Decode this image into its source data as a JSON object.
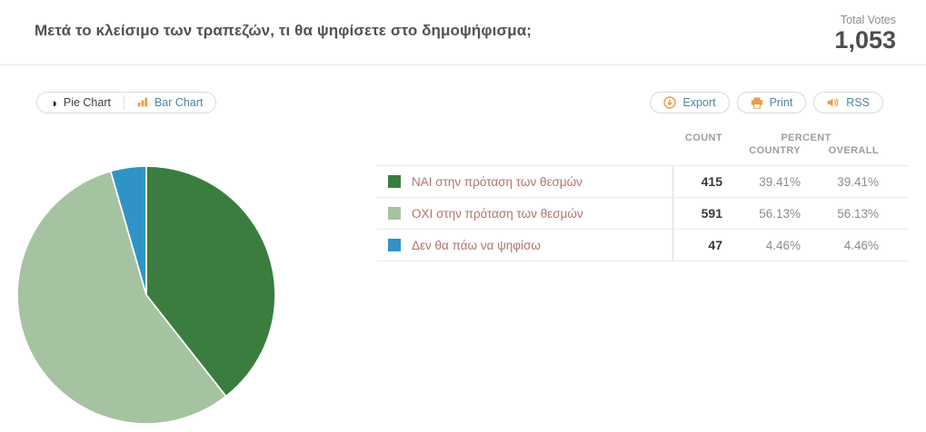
{
  "header": {
    "title": "Μετά το κλείσιμο των τραπεζών, τι θα ψηφίσετε στο δημοψήφισμα;",
    "total_votes_label": "Total Votes",
    "total_votes_value": "1,053"
  },
  "toolbar": {
    "pie_chart_label": "Pie Chart",
    "bar_chart_label": "Bar Chart",
    "export_label": "Export",
    "print_label": "Print",
    "rss_label": "RSS",
    "accent_orange": "#ee9a49",
    "link_blue": "#4c86a0"
  },
  "table": {
    "headers": {
      "count": "COUNT",
      "percent": "PERCENT",
      "country": "COUNTRY",
      "overall": "OVERALL"
    },
    "rows": [
      {
        "label": "ΝΑΙ στην πρόταση των θεσμών",
        "count": "415",
        "country": "39.41%",
        "overall": "39.41%",
        "color": "#3a7d3f"
      },
      {
        "label": "ΟΧΙ στην πρόταση των θεσμών",
        "count": "591",
        "country": "56.13%",
        "overall": "56.13%",
        "color": "#a5c3a1"
      },
      {
        "label": "Δεν θα πάω να ψηφίσω",
        "count": "47",
        "country": "4.46%",
        "overall": "4.46%",
        "color": "#2f94c5"
      }
    ]
  },
  "chart_data": {
    "type": "pie",
    "title": "Μετά το κλείσιμο των τραπεζών, τι θα ψηφίσετε στο δημοψήφισμα;",
    "labels": [
      "ΝΑΙ στην πρόταση των θεσμών",
      "ΟΧΙ στην πρόταση των θεσμών",
      "Δεν θα πάω να ψηφίσω"
    ],
    "values": [
      39.41,
      56.13,
      4.46
    ],
    "counts": [
      415,
      591,
      47
    ],
    "total_votes": 1053,
    "colors": [
      "#3a7d3f",
      "#a5c3a1",
      "#2f94c5"
    ],
    "start_angle_deg": -90,
    "direction": "clockwise",
    "slice_border_color": "#ffffff"
  },
  "icons": {
    "pie_glyph": "◑"
  }
}
